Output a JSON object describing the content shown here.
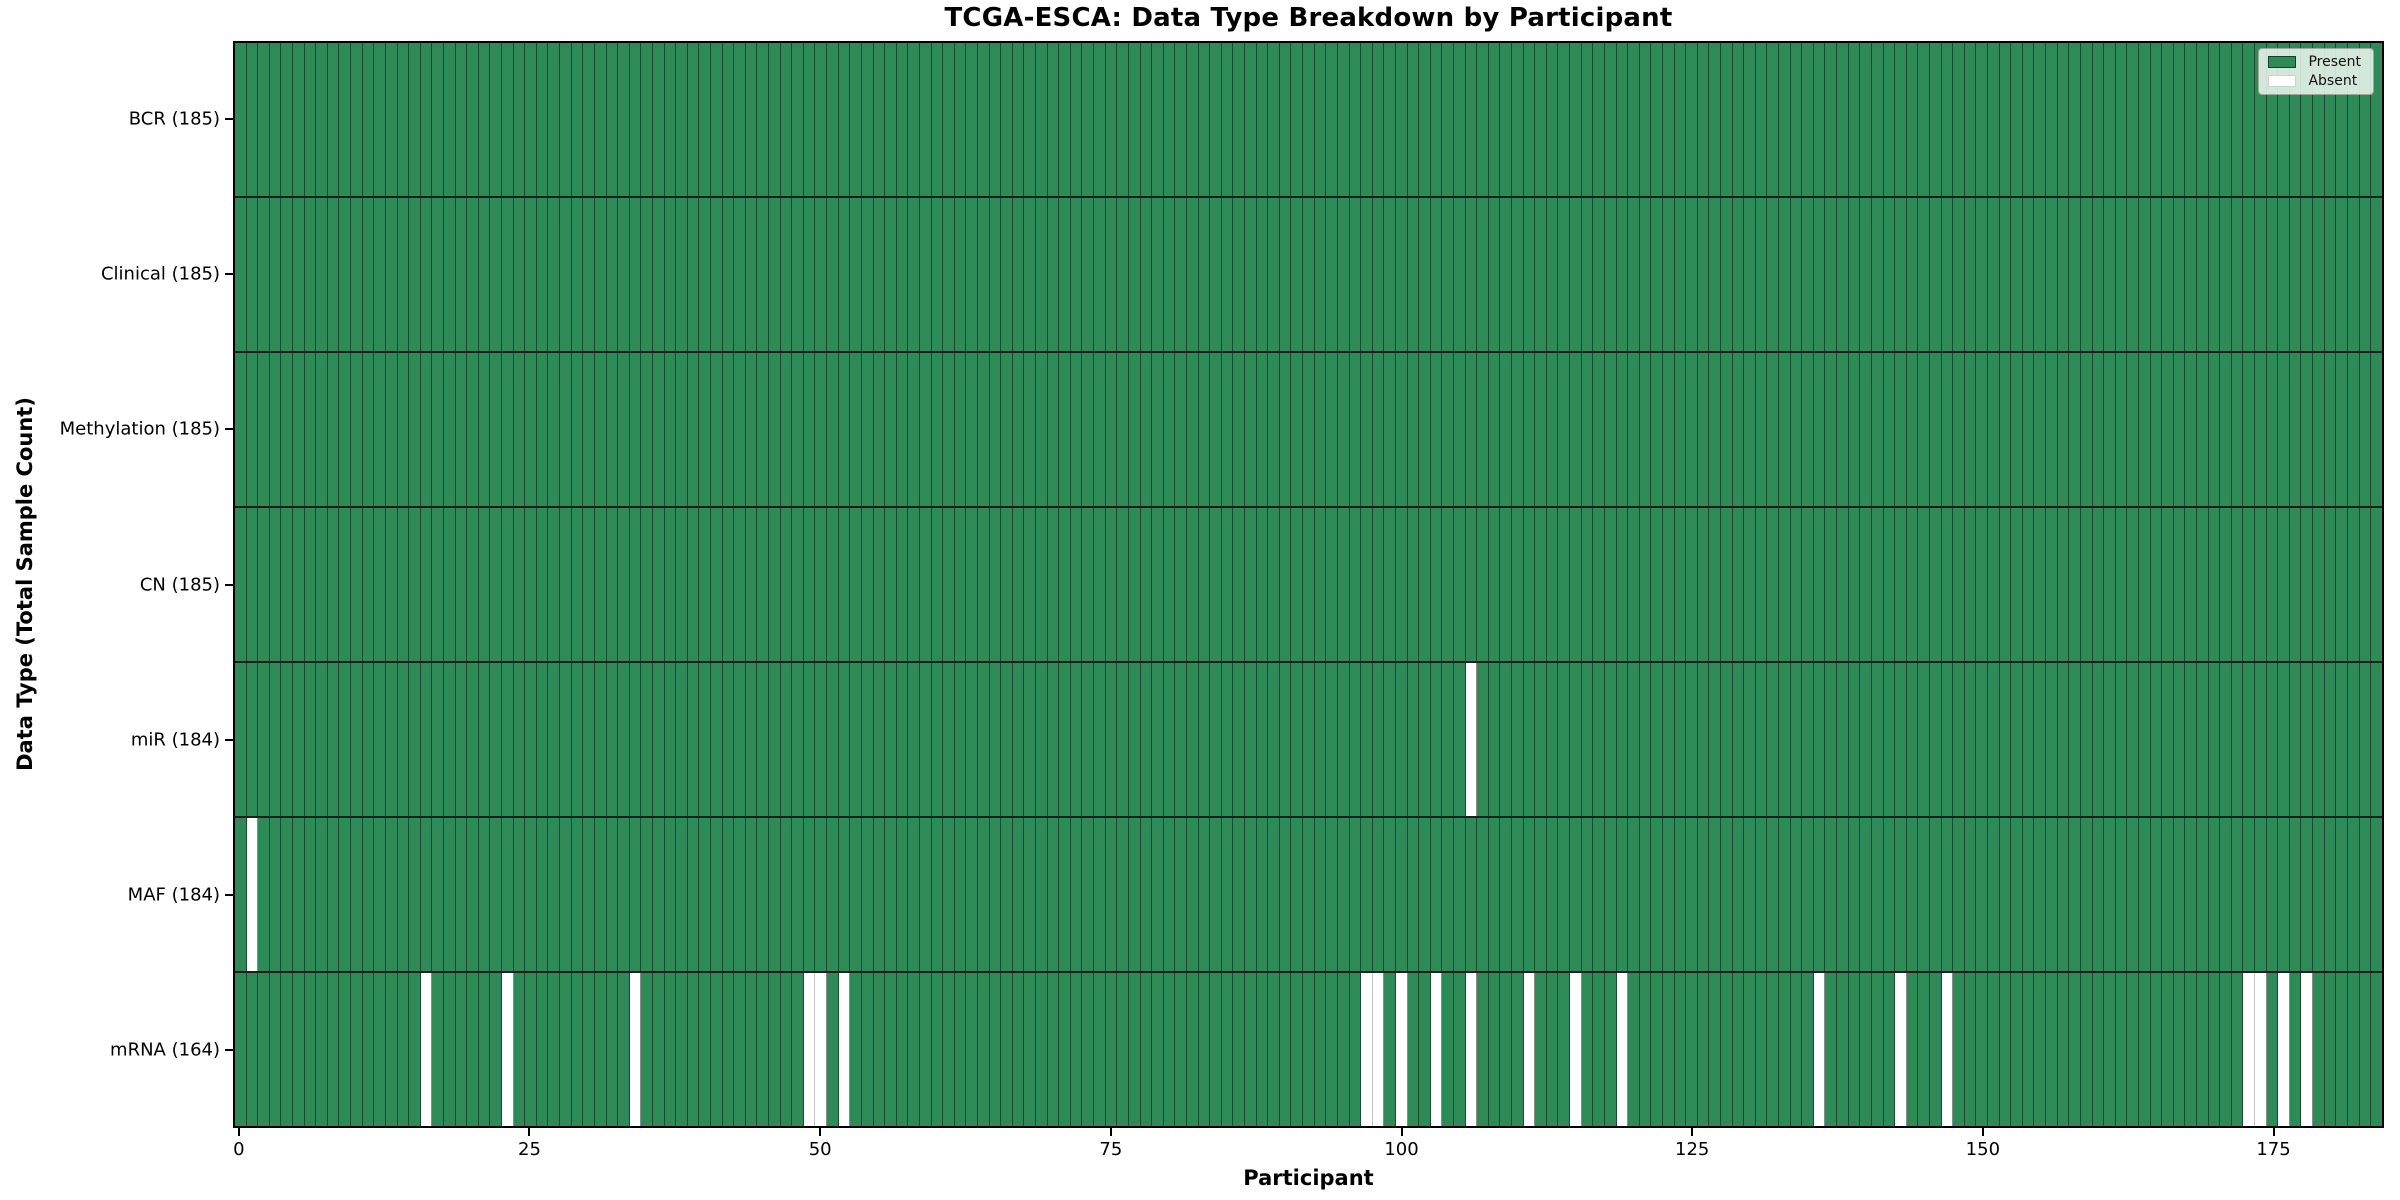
{
  "title": "TCGA-ESCA: Data Type Breakdown by Participant",
  "xlabel": "Participant",
  "ylabel": "Data Type (Total Sample Count)",
  "legend": {
    "present_label": "Present",
    "absent_label": "Absent"
  },
  "colors": {
    "present": "#2e8b57",
    "absent": "#ffffff"
  },
  "chart_data": {
    "type": "heatmap",
    "title": "TCGA-ESCA: Data Type Breakdown by Participant",
    "xlabel": "Participant",
    "ylabel": "Data Type (Total Sample Count)",
    "n_participants": 185,
    "x_range": [
      0,
      184
    ],
    "x_ticks": [
      0,
      25,
      50,
      75,
      100,
      125,
      150,
      175
    ],
    "legend_entries": [
      "Present",
      "Absent"
    ],
    "legend_position": "upper right",
    "grid": false,
    "rows": [
      {
        "name": "BCR",
        "label": "BCR (185)",
        "total": 185,
        "absent_participants": []
      },
      {
        "name": "Clinical",
        "label": "Clinical (185)",
        "total": 185,
        "absent_participants": []
      },
      {
        "name": "Methylation",
        "label": "Methylation (185)",
        "total": 185,
        "absent_participants": []
      },
      {
        "name": "CN",
        "label": "CN (185)",
        "total": 185,
        "absent_participants": []
      },
      {
        "name": "miR",
        "label": "miR (184)",
        "total": 184,
        "absent_participants": [
          106
        ]
      },
      {
        "name": "MAF",
        "label": "MAF (184)",
        "total": 184,
        "absent_participants": [
          1
        ]
      },
      {
        "name": "mRNA",
        "label": "mRNA (164)",
        "total": 164,
        "absent_participants": [
          16,
          23,
          34,
          49,
          50,
          52,
          97,
          98,
          100,
          103,
          106,
          111,
          115,
          119,
          136,
          143,
          147,
          173,
          174,
          176,
          178
        ]
      }
    ]
  }
}
